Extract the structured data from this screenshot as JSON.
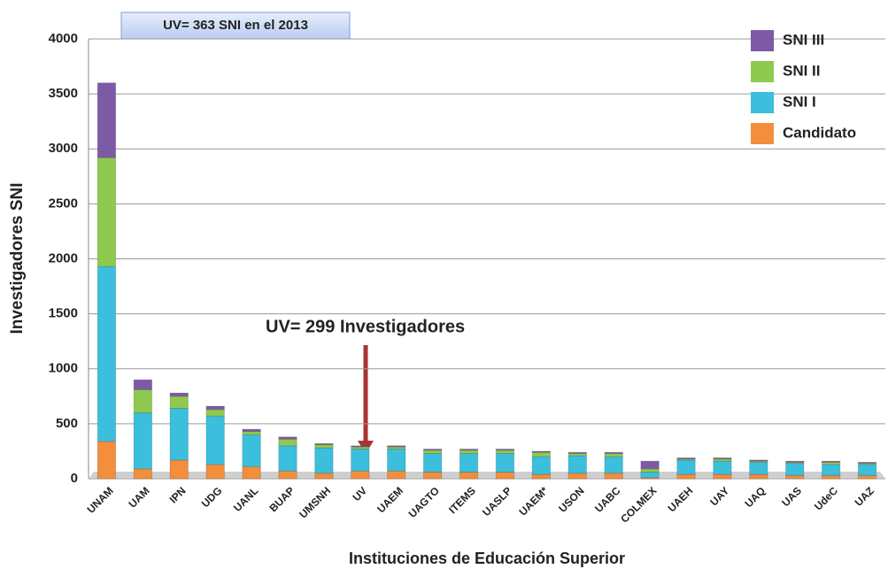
{
  "chart_data": {
    "type": "stacked_bar",
    "categories": [
      "UNAM",
      "UAM",
      "IPN",
      "UDG",
      "UANL",
      "BUAP",
      "UMSNH",
      "UV",
      "UAEM",
      "UAGTO",
      "ITEMS",
      "UASLP",
      "UAEM*",
      "USON",
      "UABC",
      "COLMEX",
      "UAEH",
      "UAY",
      "UAQ",
      "UAS",
      "UdeC",
      "UAZ"
    ],
    "series": [
      {
        "name": "Candidato",
        "color": "#f28e3c",
        "values": [
          340,
          90,
          170,
          130,
          110,
          70,
          50,
          70,
          70,
          60,
          60,
          60,
          40,
          50,
          50,
          10,
          40,
          40,
          40,
          30,
          30,
          30
        ]
      },
      {
        "name": "SNI I",
        "color": "#3bbfdc",
        "values": [
          1590,
          510,
          470,
          440,
          290,
          230,
          230,
          200,
          200,
          170,
          170,
          170,
          160,
          160,
          150,
          50,
          130,
          120,
          110,
          110,
          100,
          100
        ]
      },
      {
        "name": "SNI II",
        "color": "#8fc94f",
        "values": [
          990,
          210,
          110,
          60,
          30,
          60,
          30,
          20,
          20,
          30,
          30,
          30,
          40,
          20,
          30,
          30,
          10,
          20,
          10,
          10,
          20,
          10
        ]
      },
      {
        "name": "SNI III",
        "color": "#7d5aa6",
        "values": [
          680,
          90,
          30,
          30,
          20,
          20,
          10,
          9,
          10,
          10,
          10,
          10,
          10,
          10,
          10,
          70,
          10,
          10,
          10,
          10,
          10,
          10
        ]
      }
    ],
    "ylim": [
      0,
      4000
    ],
    "yticks": [
      0,
      500,
      1000,
      1500,
      2000,
      2500,
      3000,
      3500,
      4000
    ],
    "grid": true,
    "ylabel": "Investigadores  SNI",
    "xlabel": "Instituciones de Educación Superior",
    "legend": "upper right",
    "annotations": [
      "UV= 363 SNI en el 2013",
      "UV= 299 Investigadores"
    ]
  }
}
